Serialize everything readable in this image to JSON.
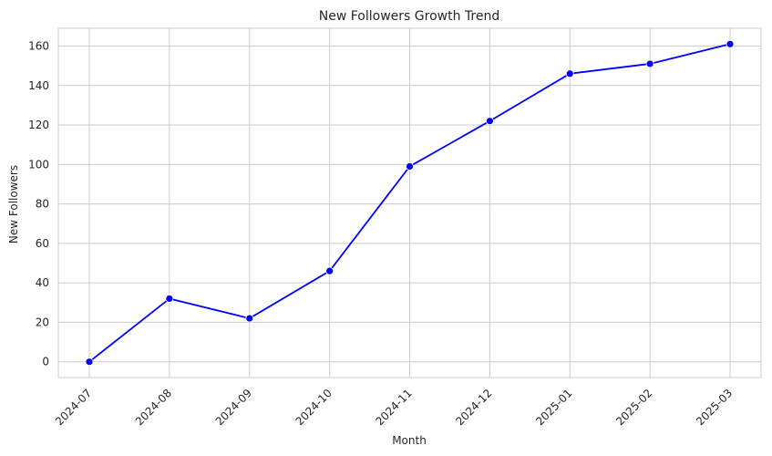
{
  "chart_data": {
    "type": "line",
    "title": "New Followers Growth Trend",
    "xlabel": "Month",
    "ylabel": "New Followers",
    "categories": [
      "2024-07",
      "2024-08",
      "2024-09",
      "2024-10",
      "2024-11",
      "2024-12",
      "2025-01",
      "2025-02",
      "2025-03"
    ],
    "series": [
      {
        "values": [
          0,
          32,
          22,
          46,
          99,
          122,
          146,
          151,
          161
        ],
        "color": "#0000ff"
      }
    ],
    "yticks": [
      0,
      20,
      40,
      60,
      80,
      100,
      120,
      140,
      160
    ],
    "ylim": [
      -8,
      169
    ],
    "grid": true
  }
}
